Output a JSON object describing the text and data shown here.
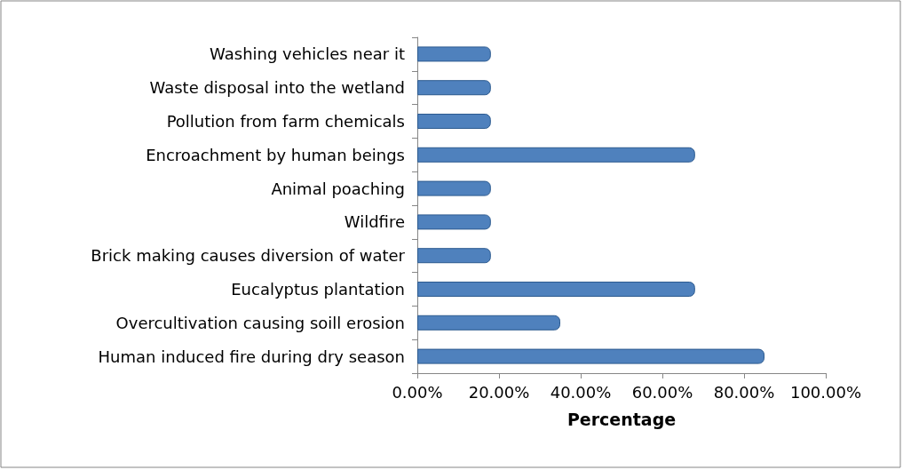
{
  "chart_data": {
    "type": "bar",
    "orientation": "horizontal",
    "xlabel": "Percentage",
    "categories": [
      "Washing vehicles near it",
      "Waste disposal into the wetland",
      "Pollution from farm chemicals",
      "Encroachment by human beings",
      "Animal poaching",
      "Wildfire",
      "Brick making causes diversion of water",
      "Eucalyptus plantation",
      "Overcultivation causing soill erosion",
      "Human induced fire during dry season"
    ],
    "values": [
      18,
      18,
      18,
      68,
      18,
      18,
      18,
      68,
      35,
      85
    ],
    "color": "#4f81bd",
    "xlim": [
      0,
      100
    ],
    "xticks": [
      {
        "value": 0,
        "label": "0.00%"
      },
      {
        "value": 20,
        "label": "20.00%"
      },
      {
        "value": 40,
        "label": "40.00%"
      },
      {
        "value": 60,
        "label": "60.00%"
      },
      {
        "value": 80,
        "label": "80.00%"
      },
      {
        "value": 100,
        "label": "100.00%"
      }
    ]
  }
}
